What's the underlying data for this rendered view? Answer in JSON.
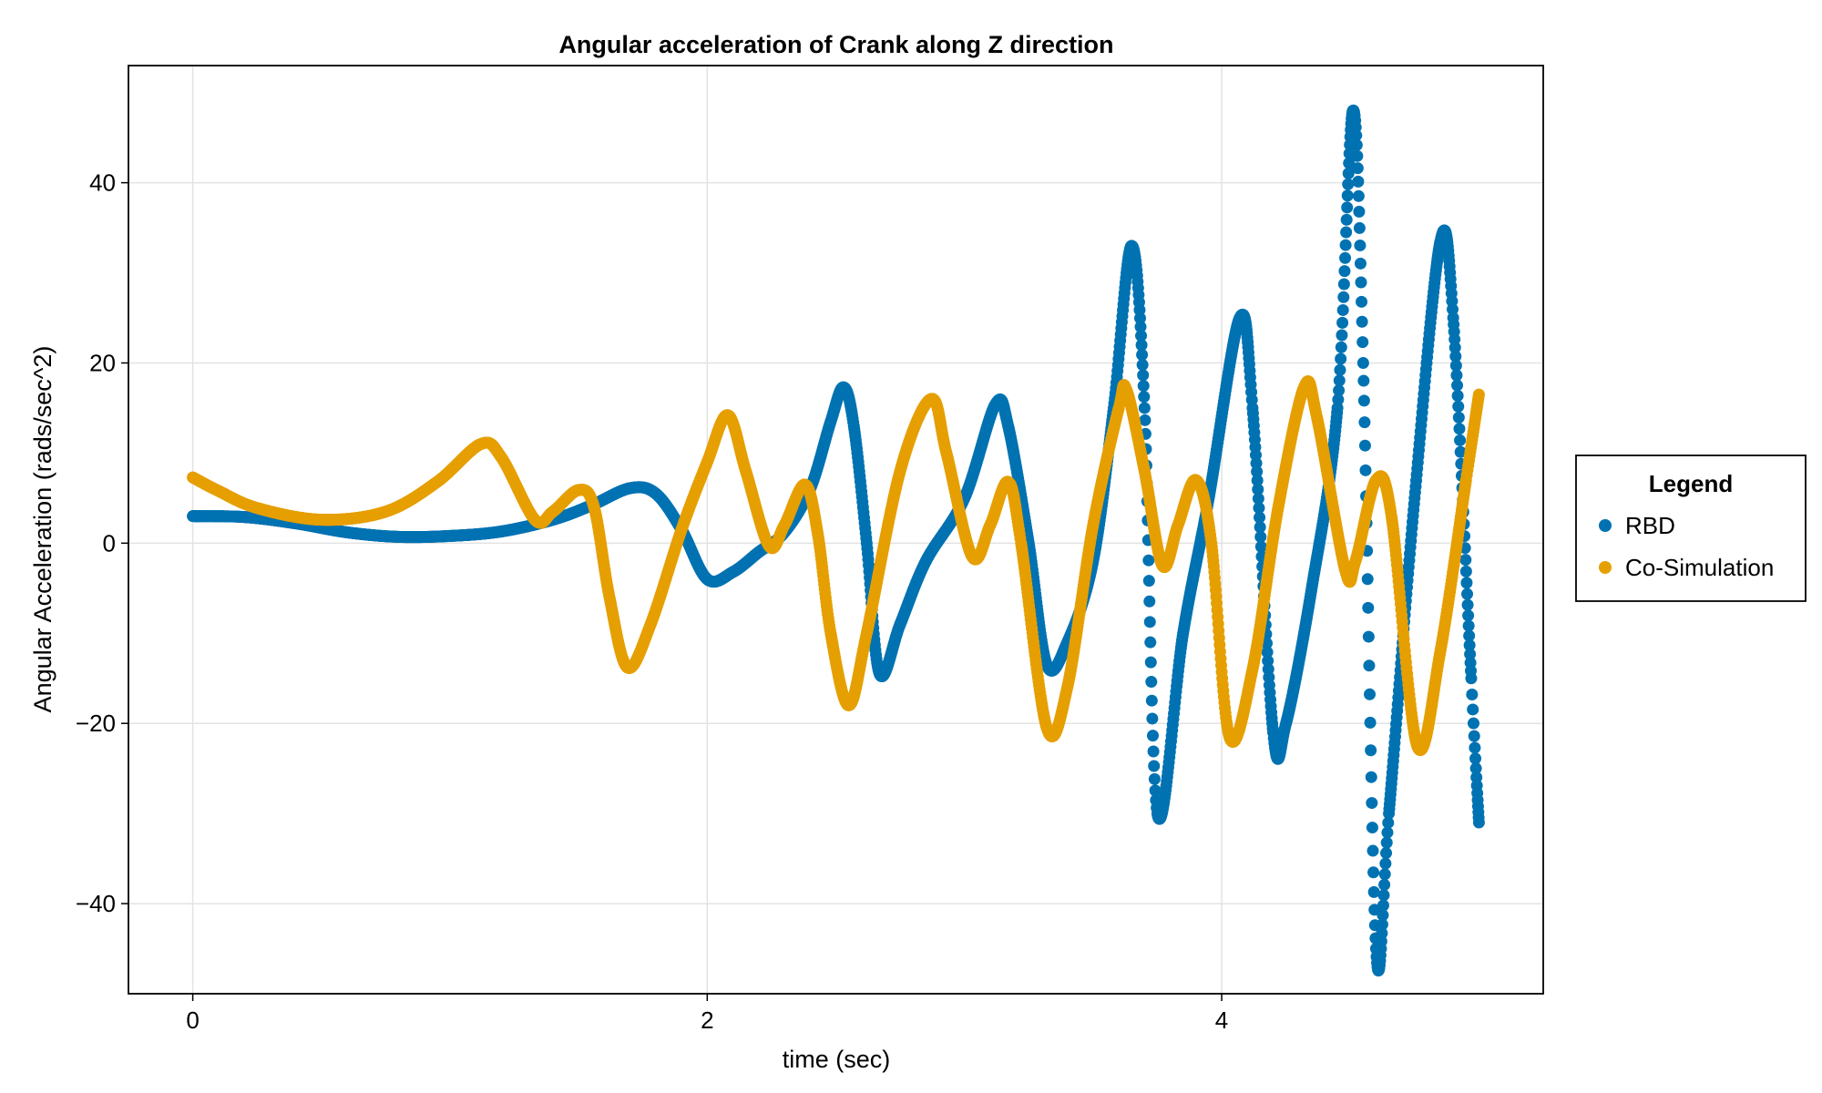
{
  "chart_data": {
    "type": "scatter",
    "title": "Angular acceleration of Crank along Z direction",
    "xlabel": "time (sec)",
    "ylabel": "Angular Acceleration (rads/sec^2)",
    "xlim": [
      -0.25,
      5.25
    ],
    "ylim": [
      -50,
      53
    ],
    "xticks": [
      0,
      2,
      4
    ],
    "yticks": [
      -40,
      -20,
      0,
      20,
      40
    ],
    "xtick_labels": [
      "0",
      "2",
      "4"
    ],
    "ytick_labels": [
      "−40",
      "−20",
      "0",
      "20",
      "40"
    ],
    "grid": true,
    "legend": {
      "title": "Legend",
      "position": "outside-right"
    },
    "series": [
      {
        "name": "RBD",
        "color": "#0072b2",
        "points": [
          [
            0.0,
            3.0
          ],
          [
            0.2,
            2.9
          ],
          [
            0.4,
            2.2
          ],
          [
            0.6,
            1.2
          ],
          [
            0.8,
            0.7
          ],
          [
            1.0,
            0.8
          ],
          [
            1.2,
            1.3
          ],
          [
            1.4,
            2.6
          ],
          [
            1.55,
            4.2
          ],
          [
            1.7,
            6.1
          ],
          [
            1.8,
            5.5
          ],
          [
            1.9,
            1.5
          ],
          [
            2.0,
            -4.0
          ],
          [
            2.1,
            -3.2
          ],
          [
            2.2,
            -1.0
          ],
          [
            2.3,
            1.2
          ],
          [
            2.4,
            6.0
          ],
          [
            2.48,
            13.5
          ],
          [
            2.53,
            17.3
          ],
          [
            2.57,
            13.0
          ],
          [
            2.62,
            0.0
          ],
          [
            2.67,
            -14.5
          ],
          [
            2.75,
            -9.0
          ],
          [
            2.85,
            -2.0
          ],
          [
            3.0,
            5.0
          ],
          [
            3.12,
            15.4
          ],
          [
            3.17,
            13.0
          ],
          [
            3.25,
            0.0
          ],
          [
            3.32,
            -13.5
          ],
          [
            3.4,
            -11.0
          ],
          [
            3.5,
            -2.0
          ],
          [
            3.58,
            15.0
          ],
          [
            3.65,
            33.0
          ],
          [
            3.7,
            15.0
          ],
          [
            3.75,
            -30.0
          ],
          [
            3.85,
            -10.0
          ],
          [
            3.95,
            5.0
          ],
          [
            4.07,
            25.0
          ],
          [
            4.12,
            15.0
          ],
          [
            4.2,
            -21.0
          ],
          [
            4.25,
            -20.0
          ],
          [
            4.35,
            -5.0
          ],
          [
            4.45,
            15.0
          ],
          [
            4.51,
            48.0
          ],
          [
            4.55,
            20.0
          ],
          [
            4.6,
            -45.0
          ],
          [
            4.65,
            -30.0
          ],
          [
            4.75,
            5.0
          ],
          [
            4.85,
            33.5
          ],
          [
            4.9,
            25.0
          ],
          [
            4.97,
            -15.0
          ],
          [
            5.0,
            -31.0
          ]
        ]
      },
      {
        "name": "Co-Simulation",
        "color": "#e69f00",
        "points": [
          [
            0.0,
            7.3
          ],
          [
            0.1,
            5.8
          ],
          [
            0.25,
            3.9
          ],
          [
            0.5,
            2.6
          ],
          [
            0.75,
            3.5
          ],
          [
            0.95,
            6.8
          ],
          [
            1.12,
            11.0
          ],
          [
            1.2,
            9.5
          ],
          [
            1.33,
            2.6
          ],
          [
            1.4,
            3.5
          ],
          [
            1.5,
            5.9
          ],
          [
            1.56,
            4.0
          ],
          [
            1.62,
            -6.0
          ],
          [
            1.69,
            -13.8
          ],
          [
            1.78,
            -9.0
          ],
          [
            1.9,
            1.5
          ],
          [
            2.0,
            9.0
          ],
          [
            2.08,
            14.2
          ],
          [
            2.15,
            8.0
          ],
          [
            2.24,
            -0.3
          ],
          [
            2.3,
            2.0
          ],
          [
            2.38,
            6.5
          ],
          [
            2.43,
            1.0
          ],
          [
            2.48,
            -10.0
          ],
          [
            2.55,
            -18.0
          ],
          [
            2.62,
            -10.0
          ],
          [
            2.75,
            8.0
          ],
          [
            2.87,
            16.0
          ],
          [
            2.93,
            10.0
          ],
          [
            3.03,
            -1.5
          ],
          [
            3.1,
            2.0
          ],
          [
            3.17,
            6.8
          ],
          [
            3.22,
            0.0
          ],
          [
            3.32,
            -20.5
          ],
          [
            3.4,
            -16.0
          ],
          [
            3.5,
            2.0
          ],
          [
            3.6,
            15.0
          ],
          [
            3.63,
            17.0
          ],
          [
            3.7,
            8.0
          ],
          [
            3.77,
            -2.5
          ],
          [
            3.83,
            2.0
          ],
          [
            3.9,
            7.0
          ],
          [
            3.96,
            0.0
          ],
          [
            4.03,
            -21.5
          ],
          [
            4.12,
            -14.0
          ],
          [
            4.22,
            4.0
          ],
          [
            4.32,
            17.3
          ],
          [
            4.37,
            14.0
          ],
          [
            4.48,
            -3.0
          ],
          [
            4.52,
            -2.0
          ],
          [
            4.6,
            7.0
          ],
          [
            4.66,
            3.0
          ],
          [
            4.76,
            -22.5
          ],
          [
            4.85,
            -12.0
          ],
          [
            4.95,
            7.0
          ],
          [
            5.0,
            16.5
          ]
        ]
      }
    ]
  }
}
